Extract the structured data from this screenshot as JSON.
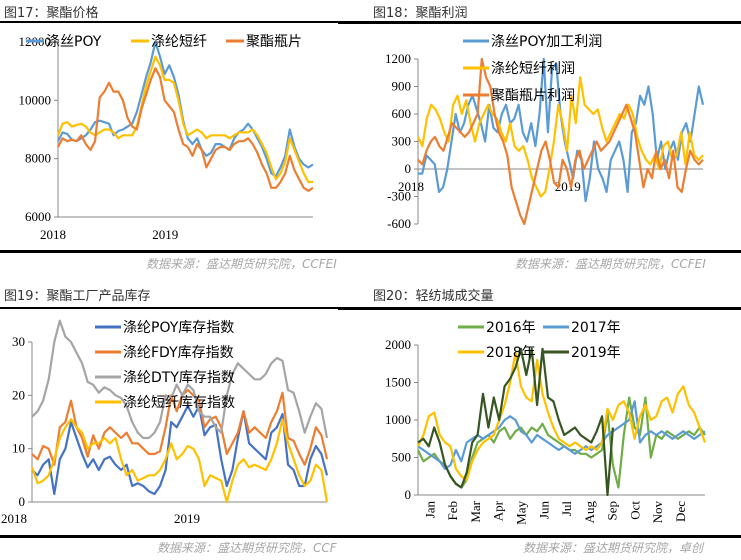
{
  "figures": [
    {
      "title": "图17：聚酯价格",
      "source": "数据来源：盛达期货研究院，CCFEI"
    },
    {
      "title": "图18：聚酯利润",
      "source": "数据来源：盛达期货研究院，CCFEI"
    },
    {
      "title": "图19：聚酯工厂产品库存",
      "source": "数据来源：盛达期货研究院，CCF"
    },
    {
      "title": "图20：轻纺城成交量",
      "source": "数据来源：盛达期货研究院，卓创"
    }
  ],
  "chart_data": [
    {
      "type": "line",
      "title": "聚酯价格",
      "xlabel": "",
      "ylabel": "",
      "ylim": [
        6000,
        12000
      ],
      "yticks": [
        "6000",
        "8000",
        "10000",
        "12000"
      ],
      "xticks": [
        "2018",
        "2019"
      ],
      "grid": false,
      "legend": "top",
      "series": [
        {
          "name": "涤丝POY",
          "color": "#5B9BD5",
          "values": [
            8600,
            8900,
            8850,
            8650,
            8600,
            8700,
            8800,
            9000,
            9250,
            9300,
            9250,
            9200,
            8800,
            8950,
            9000,
            9100,
            9200,
            9600,
            10200,
            10800,
            11300,
            12000,
            11500,
            10900,
            11200,
            10800,
            10200,
            9300,
            8700,
            8500,
            8700,
            8300,
            8100,
            8200,
            8500,
            8500,
            8400,
            8300,
            8700,
            8900,
            9000,
            9200,
            9000,
            8700,
            8400,
            8000,
            7500,
            7400,
            7700,
            8100,
            9000,
            8400,
            8000,
            7800,
            7700,
            7800
          ]
        },
        {
          "name": "涤纶短纤",
          "color": "#FFC000",
          "values": [
            8800,
            9200,
            9250,
            9100,
            9150,
            9200,
            9100,
            8900,
            8800,
            8900,
            9000,
            9000,
            8900,
            8700,
            8800,
            8800,
            8800,
            9100,
            9800,
            10500,
            11000,
            11500,
            11200,
            10700,
            10700,
            10600,
            10000,
            9200,
            8800,
            8900,
            9000,
            8900,
            8700,
            8800,
            8800,
            8800,
            8800,
            8700,
            8800,
            8900,
            8900,
            8900,
            9000,
            8800,
            8500,
            8200,
            7700,
            7300,
            7500,
            7900,
            8700,
            8300,
            7900,
            7500,
            7200,
            7200
          ]
        },
        {
          "name": "聚酯瓶片",
          "color": "#ED7D31",
          "values": [
            8400,
            8700,
            8600,
            8650,
            8600,
            8800,
            8500,
            8300,
            8600,
            10100,
            10300,
            10600,
            10300,
            10300,
            10000,
            9400,
            9100,
            9000,
            9700,
            10200,
            10700,
            11100,
            10800,
            10000,
            9800,
            9600,
            9000,
            8500,
            8400,
            8100,
            8500,
            8300,
            7700,
            8000,
            8300,
            8400,
            8400,
            8300,
            8500,
            8600,
            8600,
            8700,
            8500,
            8200,
            7800,
            7500,
            7000,
            7000,
            7200,
            7500,
            8100,
            7600,
            7300,
            7000,
            6900,
            7000
          ]
        }
      ]
    },
    {
      "type": "line",
      "title": "聚酯利润",
      "xlabel": "",
      "ylabel": "",
      "ylim": [
        -600,
        1200
      ],
      "yticks": [
        "-600",
        "-300",
        "0",
        "300",
        "600",
        "900",
        "1200"
      ],
      "xticks": [
        "2018",
        "2019"
      ],
      "grid": false,
      "legend": "top-center",
      "series": [
        {
          "name": "涤丝POY加工利润",
          "color": "#5B9BD5",
          "values": [
            -50,
            -50,
            150,
            100,
            50,
            -250,
            -200,
            0,
            300,
            600,
            400,
            500,
            700,
            800,
            650,
            500,
            300,
            700,
            450,
            400,
            600,
            700,
            500,
            550,
            700,
            400,
            300,
            500,
            250,
            600,
            1200,
            400,
            1100,
            1150,
            600,
            300,
            100,
            -100,
            200,
            100,
            -350,
            -100,
            300,
            0,
            -100,
            -250,
            100,
            200,
            300,
            100,
            -250,
            400,
            500,
            800,
            700,
            900,
            600,
            100,
            300,
            0,
            200,
            300,
            100,
            400,
            500,
            300,
            600,
            900,
            700
          ]
        },
        {
          "name": "涤纶短纤利润",
          "color": "#FFC000",
          "values": [
            350,
            250,
            550,
            700,
            650,
            550,
            400,
            300,
            700,
            800,
            600,
            750,
            500,
            300,
            500,
            600,
            700,
            600,
            550,
            400,
            300,
            500,
            250,
            200,
            250,
            100,
            -100,
            -200,
            -300,
            -250,
            0,
            300,
            700,
            500,
            200,
            800,
            500,
            1000,
            700,
            650,
            600,
            650,
            450,
            300,
            400,
            500,
            600,
            550,
            700,
            600,
            350,
            200,
            100,
            50,
            150,
            0,
            250,
            300,
            100,
            150,
            400,
            50,
            400,
            150,
            100,
            150
          ]
        },
        {
          "name": "聚酯瓶片利润",
          "color": "#ED7D31",
          "values": [
            100,
            50,
            200,
            300,
            350,
            250,
            200,
            350,
            500,
            450,
            400,
            350,
            400,
            500,
            600,
            1200,
            1000,
            900,
            600,
            400,
            300,
            150,
            -200,
            -350,
            -500,
            -600,
            -400,
            -200,
            0,
            200,
            300,
            100,
            -150,
            -200,
            100,
            0,
            -200,
            100,
            200,
            0,
            100,
            200,
            300,
            200,
            250,
            300,
            400,
            500,
            600,
            700,
            550,
            400,
            100,
            -200,
            0,
            -100,
            200,
            0,
            100,
            -100,
            200,
            -200,
            -250,
            0,
            200,
            100,
            50,
            100
          ]
        }
      ]
    },
    {
      "type": "line",
      "title": "聚酯工厂产品库存",
      "xlabel": "",
      "ylabel": "",
      "ylim": [
        0,
        30
      ],
      "yticks": [
        "0",
        "10",
        "20",
        "30"
      ],
      "xticks": [
        "2018",
        "2019"
      ],
      "grid": false,
      "legend": "top-center",
      "series": [
        {
          "name": "涤纶POY库存指数",
          "color": "#4472C4",
          "values": [
            6,
            5,
            7,
            8,
            1.5,
            8,
            10,
            15,
            12,
            9,
            6.5,
            8,
            6,
            8,
            8.5,
            7,
            6,
            7,
            3,
            3.5,
            3,
            2,
            1.5,
            3,
            6,
            15,
            14,
            16,
            18,
            16,
            18,
            12.5,
            14,
            14.5,
            8,
            3,
            6,
            12,
            17,
            11,
            10,
            9,
            8,
            13,
            14,
            16.5,
            7,
            6,
            3,
            3,
            8,
            10.5,
            9,
            5
          ]
        },
        {
          "name": "涤纶FDY库存指数",
          "color": "#ED7D31",
          "values": [
            9,
            8,
            10.5,
            10,
            7,
            14,
            15,
            19,
            14,
            12,
            8.5,
            12.5,
            10,
            13,
            14,
            13,
            12,
            13,
            11,
            11,
            10,
            9,
            9,
            9.5,
            14,
            20,
            17,
            20,
            21,
            20,
            19,
            14,
            15.5,
            16,
            14,
            9,
            11,
            13,
            17,
            13,
            14,
            13,
            12,
            15,
            17,
            20.5,
            12,
            11.5,
            9,
            7,
            10,
            14,
            12.5,
            8
          ]
        },
        {
          "name": "涤纶DTY库存指数",
          "color": "#A5A5A5",
          "values": [
            16,
            17,
            19,
            23,
            30,
            34,
            31,
            30,
            28,
            26,
            22.5,
            22,
            20.5,
            21.5,
            21,
            20,
            19.5,
            18,
            15,
            13,
            12,
            12,
            13,
            15,
            20,
            19.5,
            22,
            20,
            22,
            21,
            17,
            16,
            16,
            14,
            13,
            20,
            24,
            26,
            25,
            24,
            23,
            23,
            24,
            26,
            27,
            26.5,
            21,
            20.5,
            17,
            13,
            16,
            18.5,
            17.5,
            12
          ]
        },
        {
          "name": "涤纶短纤库存指数",
          "color": "#FFC000",
          "values": [
            6.5,
            3.5,
            4,
            5,
            8,
            12,
            14,
            15.5,
            14,
            13,
            10,
            11,
            11,
            12,
            11,
            12,
            8,
            5,
            6,
            4,
            4.5,
            5,
            5,
            6,
            8,
            11,
            8,
            9,
            10.5,
            10,
            8,
            3,
            5,
            4.5,
            4,
            0,
            4,
            7,
            8,
            6.5,
            7,
            6.5,
            6,
            8,
            11,
            15.5,
            11,
            8,
            5,
            3,
            4,
            7,
            6,
            0
          ]
        }
      ]
    },
    {
      "type": "line",
      "title": "轻纺城成交量",
      "xlabel": "",
      "ylabel": "",
      "ylim": [
        0,
        2000
      ],
      "yticks": [
        "0",
        "500",
        "1000",
        "1500",
        "2000"
      ],
      "xticks": [
        "Jan",
        "Feb",
        "Mar",
        "Apr",
        "May",
        "Jun",
        "Jul",
        "Aug",
        "Sep",
        "Oct",
        "Nov",
        "Dec"
      ],
      "grid": false,
      "legend": "top-center",
      "series": [
        {
          "name": "2016年",
          "color": "#70AD47",
          "values": [
            600,
            450,
            500,
            550,
            450,
            400,
            250,
            150,
            100,
            200,
            500,
            700,
            750,
            800,
            700,
            850,
            900,
            750,
            850,
            900,
            800,
            900,
            850,
            950,
            800,
            750,
            700,
            650,
            600,
            600,
            550,
            550,
            500,
            550,
            600,
            1100,
            400,
            100,
            800,
            1300,
            900,
            800,
            1300,
            500,
            800,
            750,
            850,
            800,
            750,
            800,
            850,
            800,
            900,
            800
          ]
        },
        {
          "name": "2017年",
          "color": "#5B9BD5",
          "values": [
            650,
            600,
            550,
            500,
            450,
            350,
            400,
            600,
            450,
            700,
            750,
            800,
            750,
            800,
            850,
            900,
            1000,
            1050,
            1000,
            850,
            800,
            700,
            800,
            750,
            700,
            650,
            600,
            650,
            600,
            550,
            600,
            650,
            600,
            650,
            700,
            800,
            850,
            900,
            950,
            1000,
            1250,
            700,
            800,
            850,
            800,
            850,
            800,
            750,
            800,
            850,
            800,
            750,
            800,
            850
          ]
        },
        {
          "name": "2018年",
          "color": "#FFC000",
          "values": [
            650,
            800,
            1050,
            1100,
            800,
            700,
            650,
            350,
            250,
            200,
            450,
            600,
            700,
            750,
            800,
            1000,
            1200,
            1500,
            1900,
            1450,
            1300,
            1250,
            1800,
            1350,
            1100,
            900,
            750,
            700,
            650,
            700,
            650,
            600,
            650,
            600,
            700,
            1150,
            1000,
            1200,
            1250,
            1100,
            750,
            1050,
            1200,
            1000,
            1050,
            1250,
            1300,
            1100,
            1350,
            1450,
            1200,
            1100,
            900,
            700
          ]
        },
        {
          "name": "2019年",
          "color": "#375623",
          "values": [
            700,
            750,
            650,
            900,
            700,
            400,
            250,
            150,
            100,
            300,
            700,
            800,
            1350,
            900,
            1300,
            1000,
            1450,
            1550,
            1700,
            1950,
            1600,
            1950,
            1200,
            1950,
            1300,
            1250,
            1000,
            800,
            850,
            900,
            800,
            750,
            700,
            850,
            1050,
            0,
            900
          ]
        }
      ]
    }
  ]
}
